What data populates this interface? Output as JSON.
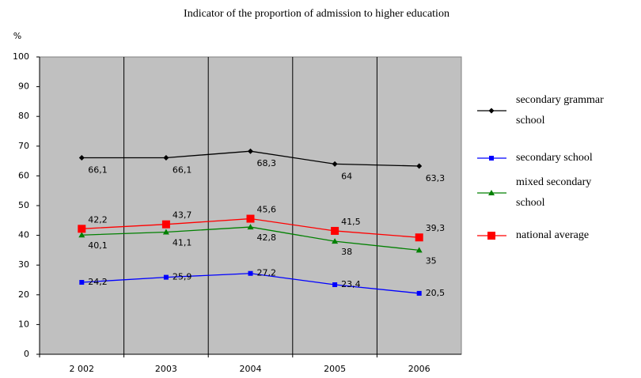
{
  "chart_data": {
    "type": "line",
    "title": "Indicator of the proportion of admission to higher education",
    "y_label": "%",
    "categories": [
      "2 002",
      "2003",
      "2004",
      "2005",
      "2006"
    ],
    "ylim": [
      0,
      100
    ],
    "yticks": [
      0,
      10,
      20,
      30,
      40,
      50,
      60,
      70,
      80,
      90,
      100
    ],
    "legend": "right",
    "plot_background": "#c0c0c0",
    "series": [
      {
        "name": "secondary grammar school",
        "color": "#000000",
        "marker": "diamond",
        "values": [
          66.1,
          66.1,
          68.3,
          64,
          63.3
        ],
        "value_labels": [
          "66,1",
          "66,1",
          "68,3",
          "64",
          "63,3"
        ]
      },
      {
        "name": "secondary school",
        "color": "#0000ff",
        "marker": "square",
        "values": [
          24.2,
          25.9,
          27.2,
          23.4,
          20.5
        ],
        "value_labels": [
          "24,2",
          "25,9",
          "27,2",
          "23,4",
          "20,5"
        ]
      },
      {
        "name": "mixed secondary school",
        "color": "#008000",
        "marker": "triangle",
        "values": [
          40.1,
          41.1,
          42.8,
          38,
          35
        ],
        "value_labels": [
          "40,1",
          "41,1",
          "42,8",
          "38",
          "35"
        ]
      },
      {
        "name": "national average",
        "color": "#ff0000",
        "marker": "bigsquare",
        "values": [
          42.2,
          43.7,
          45.6,
          41.5,
          39.3
        ],
        "value_labels": [
          "42,2",
          "43,7",
          "45,6",
          "41,5",
          "39,3"
        ]
      }
    ]
  }
}
